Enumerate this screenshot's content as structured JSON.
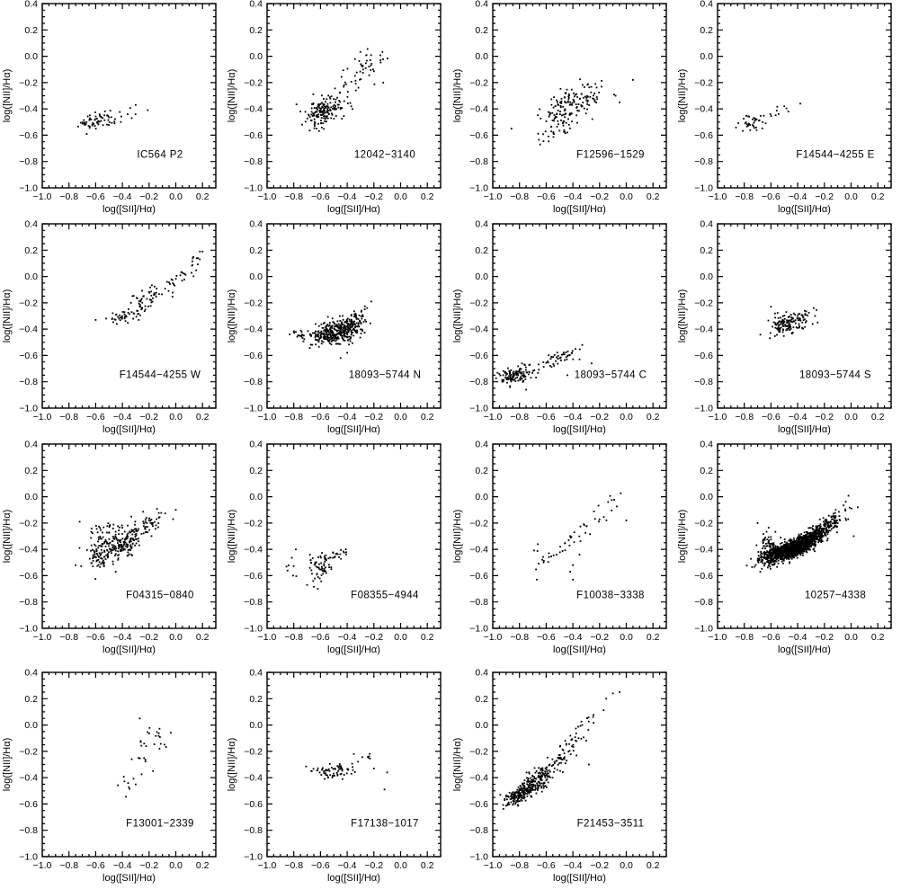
{
  "figure": {
    "title": "",
    "xlabel": "log([SII]/Hα)",
    "ylabel": "log([NII]/Hα)",
    "xlim": [
      -1.0,
      0.3
    ],
    "ylim": [
      -1.0,
      0.4
    ],
    "x_ticks": [
      -1.0,
      -0.8,
      -0.6,
      -0.4,
      -0.2,
      0.0,
      0.2
    ],
    "y_ticks": [
      -1.0,
      -0.8,
      -0.6,
      -0.4,
      -0.2,
      0.0,
      0.2,
      0.4
    ],
    "x_tick_labels": [
      "−1.0",
      "−0.8",
      "−0.6",
      "−0.4",
      "−0.2",
      "0.0",
      "0.2"
    ],
    "y_tick_labels": [
      "−1.0",
      "−0.8",
      "−0.6",
      "−0.4",
      "−0.2",
      "0.0",
      "0.2",
      "0.4"
    ],
    "minor_tick_step": 0.05,
    "grid": "off",
    "legend": "none",
    "columns": 4,
    "rows": 4,
    "marker_color": "#000000",
    "background_color": "#ffffff",
    "note": "15 scatter panels, all sharing identical axes; panel name printed inside each panel"
  },
  "chart_data": [
    {
      "type": "scatter",
      "label": "IC564 P2",
      "xlabel": "log([SII]/Hα)",
      "ylabel": "log([NII]/Hα)",
      "xlim": [
        -1.0,
        0.3
      ],
      "ylim": [
        -1.0,
        0.4
      ],
      "clusters": [
        {
          "cx": -0.63,
          "cy": -0.49,
          "sx": 0.055,
          "sy": 0.03,
          "rho": 0.2,
          "n": 45
        },
        {
          "cx": -0.47,
          "cy": -0.47,
          "sx": 0.07,
          "sy": 0.035,
          "rho": 0.4,
          "n": 22
        }
      ],
      "points": [
        [
          -0.21,
          -0.41
        ],
        [
          -0.3,
          -0.37
        ],
        [
          -0.36,
          -0.44
        ],
        [
          -0.33,
          -0.47
        ]
      ]
    },
    {
      "type": "scatter",
      "label": "12042−3140",
      "xlabel": "log([SII]/Hα)",
      "ylabel": "log([NII]/Hα)",
      "xlim": [
        -1.0,
        0.3
      ],
      "ylim": [
        -1.0,
        0.4
      ],
      "clusters": [
        {
          "cx": -0.59,
          "cy": -0.42,
          "sx": 0.06,
          "sy": 0.045,
          "rho": 0.5,
          "n": 110
        },
        {
          "cx": -0.48,
          "cy": -0.33,
          "sx": 0.08,
          "sy": 0.07,
          "rho": 0.5,
          "n": 55
        },
        {
          "cx": -0.28,
          "cy": -0.09,
          "sx": 0.08,
          "sy": 0.07,
          "rho": 0.4,
          "n": 40
        },
        {
          "cx": -0.62,
          "cy": -0.52,
          "sx": 0.05,
          "sy": 0.03,
          "rho": 0.3,
          "n": 15
        }
      ],
      "points": [
        [
          -0.15,
          -0.03
        ],
        [
          -0.13,
          -0.2
        ],
        [
          -0.75,
          -0.42
        ]
      ]
    },
    {
      "type": "scatter",
      "label": "F12596−1529",
      "xlabel": "log([SII]/Hα)",
      "ylabel": "log([NII]/Hα)",
      "xlim": [
        -1.0,
        0.3
      ],
      "ylim": [
        -1.0,
        0.4
      ],
      "clusters": [
        {
          "cx": -0.47,
          "cy": -0.42,
          "sx": 0.11,
          "sy": 0.09,
          "rho": 0.45,
          "n": 120
        },
        {
          "cx": -0.3,
          "cy": -0.3,
          "sx": 0.09,
          "sy": 0.05,
          "rho": 0.3,
          "n": 45
        },
        {
          "cx": -0.55,
          "cy": -0.6,
          "sx": 0.06,
          "sy": 0.05,
          "rho": 0.3,
          "n": 15
        }
      ],
      "points": [
        [
          0.05,
          -0.18
        ],
        [
          -0.05,
          -0.35
        ],
        [
          -0.08,
          -0.3
        ]
      ]
    },
    {
      "type": "scatter",
      "label": "F14544−4255 E",
      "xlabel": "log([SII]/Hα)",
      "ylabel": "log([NII]/Hα)",
      "xlim": [
        -1.0,
        0.3
      ],
      "ylim": [
        -1.0,
        0.4
      ],
      "clusters": [
        {
          "cx": -0.73,
          "cy": -0.5,
          "sx": 0.055,
          "sy": 0.033,
          "rho": 0.45,
          "n": 36
        },
        {
          "cx": -0.55,
          "cy": -0.43,
          "sx": 0.04,
          "sy": 0.03,
          "rho": 0.5,
          "n": 7
        }
      ],
      "points": [
        [
          -0.38,
          -0.36
        ],
        [
          -0.5,
          -0.38
        ],
        [
          -0.47,
          -0.42
        ]
      ]
    },
    {
      "type": "scatter",
      "label": "F14544−4255 W",
      "xlabel": "log([SII]/Hα)",
      "ylabel": "log([NII]/Hα)",
      "xlim": [
        -1.0,
        0.3
      ],
      "ylim": [
        -1.0,
        0.4
      ],
      "clusters": [
        {
          "cx": -0.44,
          "cy": -0.32,
          "sx": 0.05,
          "sy": 0.025,
          "rho": 0.4,
          "n": 28
        },
        {
          "cx": -0.3,
          "cy": -0.27,
          "sx": 0.05,
          "sy": 0.04,
          "rho": 0.5,
          "n": 25
        },
        {
          "cx": -0.22,
          "cy": -0.15,
          "sx": 0.06,
          "sy": 0.05,
          "rho": 0.4,
          "n": 35
        },
        {
          "cx": -0.08,
          "cy": -0.1,
          "sx": 0.05,
          "sy": 0.05,
          "rho": 0.5,
          "n": 15
        },
        {
          "cx": 0.05,
          "cy": 0.0,
          "sx": 0.05,
          "sy": 0.04,
          "rho": 0.6,
          "n": 12
        },
        {
          "cx": 0.13,
          "cy": 0.12,
          "sx": 0.04,
          "sy": 0.04,
          "rho": 0.7,
          "n": 10
        }
      ],
      "points": [
        [
          0.2,
          0.19
        ],
        [
          -0.6,
          -0.33
        ],
        [
          0.18,
          0.13
        ]
      ]
    },
    {
      "type": "scatter",
      "label": "18093−5744 N",
      "xlabel": "log([SII]/Hα)",
      "ylabel": "log([NII]/Hα)",
      "xlim": [
        -1.0,
        0.3
      ],
      "ylim": [
        -1.0,
        0.4
      ],
      "clusters": [
        {
          "cx": -0.5,
          "cy": -0.43,
          "sx": 0.09,
          "sy": 0.045,
          "rho": 0.3,
          "n": 260
        },
        {
          "cx": -0.4,
          "cy": -0.38,
          "sx": 0.06,
          "sy": 0.04,
          "rho": 0.4,
          "n": 100
        },
        {
          "cx": -0.32,
          "cy": -0.32,
          "sx": 0.05,
          "sy": 0.05,
          "rho": 0.4,
          "n": 30
        },
        {
          "cx": -0.73,
          "cy": -0.45,
          "sx": 0.05,
          "sy": 0.025,
          "rho": 0.1,
          "n": 18
        }
      ],
      "points": [
        [
          -0.22,
          -0.19
        ],
        [
          -0.25,
          -0.24
        ],
        [
          -0.45,
          -0.62
        ],
        [
          -0.4,
          -0.58
        ],
        [
          -0.83,
          -0.44
        ]
      ]
    },
    {
      "type": "scatter",
      "label": "18093−5744 C",
      "xlabel": "log([SII]/Hα)",
      "ylabel": "log([NII]/Hα)",
      "xlim": [
        -1.0,
        0.3
      ],
      "ylim": [
        -1.0,
        0.4
      ],
      "clusters": [
        {
          "cx": -0.85,
          "cy": -0.76,
          "sx": 0.055,
          "sy": 0.035,
          "rho": 0.3,
          "n": 100
        },
        {
          "cx": -0.72,
          "cy": -0.72,
          "sx": 0.04,
          "sy": 0.03,
          "rho": 0.3,
          "n": 25
        },
        {
          "cx": -0.5,
          "cy": -0.62,
          "sx": 0.07,
          "sy": 0.035,
          "rho": 0.5,
          "n": 45
        }
      ],
      "points": [
        [
          -0.33,
          -0.52
        ],
        [
          -0.26,
          -0.66
        ],
        [
          -0.75,
          -0.86
        ],
        [
          -0.38,
          -0.55
        ],
        [
          -0.35,
          -0.63
        ],
        [
          -0.44,
          -0.75
        ]
      ]
    },
    {
      "type": "scatter",
      "label": "18093−5744 S",
      "xlabel": "log([SII]/Hα)",
      "ylabel": "log([NII]/Hα)",
      "xlim": [
        -1.0,
        0.3
      ],
      "ylim": [
        -1.0,
        0.4
      ],
      "clusters": [
        {
          "cx": -0.48,
          "cy": -0.36,
          "sx": 0.06,
          "sy": 0.045,
          "rho": 0.4,
          "n": 130
        },
        {
          "cx": -0.35,
          "cy": -0.31,
          "sx": 0.04,
          "sy": 0.04,
          "rho": 0.3,
          "n": 15
        }
      ],
      "points": [
        [
          -0.6,
          -0.23
        ],
        [
          -0.28,
          -0.24
        ],
        [
          -0.25,
          -0.35
        ],
        [
          -0.27,
          -0.3
        ]
      ]
    },
    {
      "type": "scatter",
      "label": "F04315−0840",
      "xlabel": "log([SII]/Hα)",
      "ylabel": "log([NII]/Hα)",
      "xlim": [
        -1.0,
        0.3
      ],
      "ylim": [
        -1.0,
        0.4
      ],
      "clusters": [
        {
          "cx": -0.43,
          "cy": -0.36,
          "sx": 0.08,
          "sy": 0.06,
          "rho": 0.3,
          "n": 180
        },
        {
          "cx": -0.57,
          "cy": -0.46,
          "sx": 0.05,
          "sy": 0.05,
          "rho": 0.2,
          "n": 55
        },
        {
          "cx": -0.22,
          "cy": -0.22,
          "sx": 0.07,
          "sy": 0.06,
          "rho": 0.4,
          "n": 55
        },
        {
          "cx": -0.55,
          "cy": -0.25,
          "sx": 0.06,
          "sy": 0.04,
          "rho": 0.2,
          "n": 25
        }
      ],
      "points": [
        [
          -0.72,
          -0.19
        ],
        [
          -0.75,
          -0.52
        ],
        [
          0.0,
          -0.1
        ],
        [
          -0.02,
          -0.17
        ],
        [
          -0.45,
          -0.57
        ]
      ]
    },
    {
      "type": "scatter",
      "label": "F08355−4944",
      "xlabel": "log([SII]/Hα)",
      "ylabel": "log([NII]/Hα)",
      "xlim": [
        -1.0,
        0.3
      ],
      "ylim": [
        -1.0,
        0.4
      ],
      "clusters": [
        {
          "cx": -0.6,
          "cy": -0.52,
          "sx": 0.055,
          "sy": 0.055,
          "rho": 0.4,
          "n": 65
        },
        {
          "cx": -0.46,
          "cy": -0.44,
          "sx": 0.035,
          "sy": 0.025,
          "rho": 0.5,
          "n": 14
        },
        {
          "cx": -0.82,
          "cy": -0.53,
          "sx": 0.035,
          "sy": 0.06,
          "rho": 0.0,
          "n": 8
        }
      ],
      "points": [
        [
          -0.41,
          -0.4
        ],
        [
          -0.62,
          -0.7
        ],
        [
          -0.7,
          -0.67
        ]
      ]
    },
    {
      "type": "scatter",
      "label": "F10038−3338",
      "xlabel": "log([SII]/Hα)",
      "ylabel": "log([NII]/Hα)",
      "xlim": [
        -1.0,
        0.3
      ],
      "ylim": [
        -1.0,
        0.4
      ],
      "clusters": [
        {
          "cx": -0.6,
          "cy": -0.46,
          "sx": 0.06,
          "sy": 0.035,
          "rho": 0.3,
          "n": 16
        },
        {
          "cx": -0.44,
          "cy": -0.34,
          "sx": 0.045,
          "sy": 0.05,
          "rho": 0.5,
          "n": 13
        },
        {
          "cx": -0.26,
          "cy": -0.2,
          "sx": 0.06,
          "sy": 0.05,
          "rho": 0.4,
          "n": 12
        },
        {
          "cx": -0.13,
          "cy": -0.08,
          "sx": 0.06,
          "sy": 0.07,
          "rho": 0.6,
          "n": 10
        }
      ],
      "points": [
        [
          0.0,
          -0.18
        ],
        [
          -0.4,
          -0.52
        ],
        [
          -0.42,
          -0.57
        ],
        [
          -0.67,
          -0.63
        ],
        [
          -0.4,
          -0.63
        ],
        [
          -0.35,
          -0.44
        ]
      ]
    },
    {
      "type": "scatter",
      "label": "10257−4338",
      "xlabel": "log([SII]/Hα)",
      "ylabel": "log([NII]/Hα)",
      "xlim": [
        -1.0,
        0.3
      ],
      "ylim": [
        -1.0,
        0.4
      ],
      "clusters": [
        {
          "cx": -0.5,
          "cy": -0.42,
          "sx": 0.08,
          "sy": 0.035,
          "rho": 0.5,
          "n": 650
        },
        {
          "cx": -0.37,
          "cy": -0.36,
          "sx": 0.06,
          "sy": 0.035,
          "rho": 0.5,
          "n": 350
        },
        {
          "cx": -0.28,
          "cy": -0.3,
          "sx": 0.05,
          "sy": 0.035,
          "rho": 0.5,
          "n": 250
        },
        {
          "cx": -0.17,
          "cy": -0.22,
          "sx": 0.05,
          "sy": 0.04,
          "rho": 0.5,
          "n": 110
        },
        {
          "cx": -0.62,
          "cy": -0.38,
          "sx": 0.035,
          "sy": 0.06,
          "rho": 0.0,
          "n": 60
        },
        {
          "cx": -0.63,
          "cy": -0.5,
          "sx": 0.05,
          "sy": 0.035,
          "rho": 0.2,
          "n": 30
        },
        {
          "cx": -0.05,
          "cy": -0.13,
          "sx": 0.05,
          "sy": 0.05,
          "rho": 0.3,
          "n": 15
        }
      ],
      "points": [
        [
          -0.7,
          -0.2
        ],
        [
          0.05,
          -0.08
        ],
        [
          -0.68,
          -0.57
        ],
        [
          0.02,
          -0.3
        ]
      ]
    },
    {
      "type": "scatter",
      "label": "F13001−2339",
      "xlabel": "log([SII]/Hα)",
      "ylabel": "log([NII]/Hα)",
      "xlim": [
        -1.0,
        0.3
      ],
      "ylim": [
        -1.0,
        0.4
      ],
      "clusters": [
        {
          "cx": -0.16,
          "cy": -0.11,
          "sx": 0.08,
          "sy": 0.06,
          "rho": 0.2,
          "n": 20
        },
        {
          "cx": -0.26,
          "cy": -0.3,
          "sx": 0.04,
          "sy": 0.05,
          "rho": 0.3,
          "n": 8
        },
        {
          "cx": -0.38,
          "cy": -0.47,
          "sx": 0.04,
          "sy": 0.035,
          "rho": 0.2,
          "n": 7
        }
      ],
      "points": [
        [
          -0.27,
          0.05
        ],
        [
          -0.33,
          -0.26
        ],
        [
          -0.17,
          -0.35
        ]
      ]
    },
    {
      "type": "scatter",
      "label": "F17138−1017",
      "xlabel": "log([SII]/Hα)",
      "ylabel": "log([NII]/Hα)",
      "xlim": [
        -1.0,
        0.3
      ],
      "ylim": [
        -1.0,
        0.4
      ],
      "clusters": [
        {
          "cx": -0.47,
          "cy": -0.35,
          "sx": 0.07,
          "sy": 0.03,
          "rho": 0.2,
          "n": 60
        },
        {
          "cx": -0.62,
          "cy": -0.34,
          "sx": 0.04,
          "sy": 0.02,
          "rho": 0.0,
          "n": 10
        },
        {
          "cx": -0.28,
          "cy": -0.25,
          "sx": 0.035,
          "sy": 0.025,
          "rho": 0.2,
          "n": 7
        }
      ],
      "points": [
        [
          -0.12,
          -0.49
        ],
        [
          -0.1,
          -0.36
        ],
        [
          -0.2,
          -0.33
        ],
        [
          -0.35,
          -0.22
        ]
      ]
    },
    {
      "type": "scatter",
      "label": "F21453−3511",
      "xlabel": "log([SII]/Hα)",
      "ylabel": "log([NII]/Hα)",
      "xlim": [
        -1.0,
        0.3
      ],
      "ylim": [
        -1.0,
        0.4
      ],
      "clusters": [
        {
          "cx": -0.8,
          "cy": -0.53,
          "sx": 0.06,
          "sy": 0.04,
          "rho": 0.6,
          "n": 160
        },
        {
          "cx": -0.7,
          "cy": -0.45,
          "sx": 0.05,
          "sy": 0.045,
          "rho": 0.5,
          "n": 110
        },
        {
          "cx": -0.6,
          "cy": -0.37,
          "sx": 0.05,
          "sy": 0.05,
          "rho": 0.5,
          "n": 60
        },
        {
          "cx": -0.5,
          "cy": -0.25,
          "sx": 0.05,
          "sy": 0.06,
          "rho": 0.6,
          "n": 35
        },
        {
          "cx": -0.4,
          "cy": -0.1,
          "sx": 0.05,
          "sy": 0.07,
          "rho": 0.7,
          "n": 20
        },
        {
          "cx": -0.25,
          "cy": 0.05,
          "sx": 0.06,
          "sy": 0.07,
          "rho": 0.8,
          "n": 12
        }
      ],
      "points": [
        [
          -0.1,
          0.24
        ],
        [
          -0.05,
          0.25
        ],
        [
          -0.15,
          0.2
        ],
        [
          -0.3,
          -0.12
        ],
        [
          -0.28,
          -0.3
        ],
        [
          -0.33,
          0.0
        ]
      ]
    }
  ]
}
